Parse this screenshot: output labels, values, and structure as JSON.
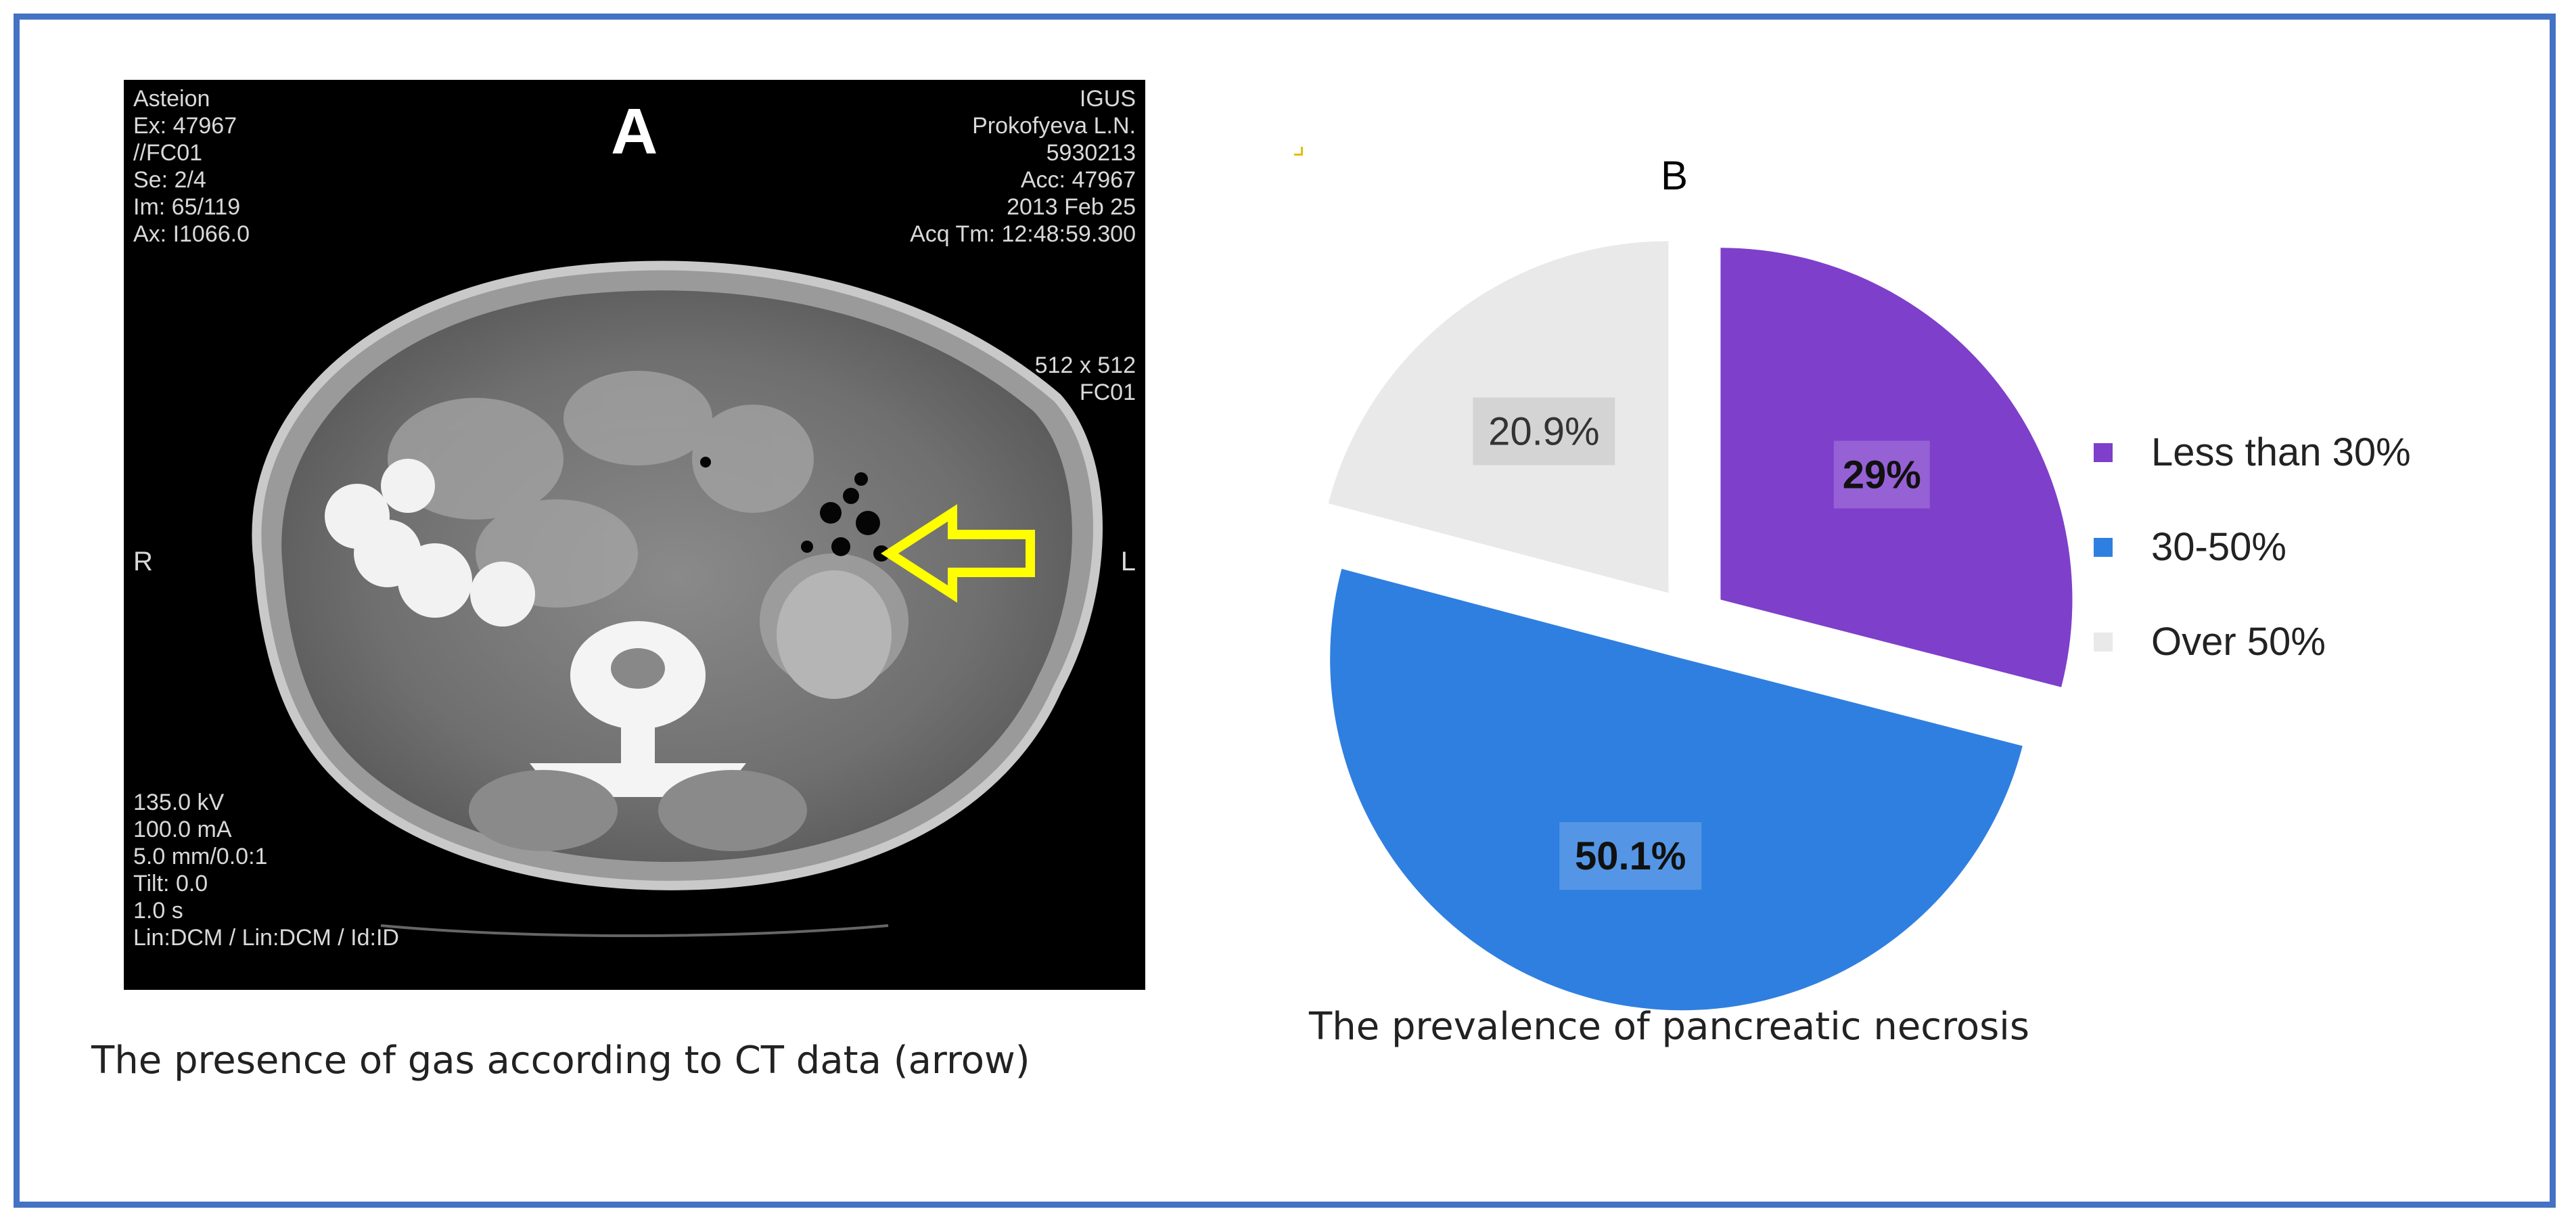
{
  "panel_a": {
    "letter": "A",
    "overlay_left_top": [
      "Asteion",
      "Ex: 47967",
      "//FC01",
      "Se: 2/4",
      "Im: 65/119",
      "Ax: I1066.0"
    ],
    "overlay_right_top": [
      "IGUS",
      "Prokofyeva L.N.",
      "5930213",
      "Acc: 47967",
      "2013 Feb 25",
      "Acq Tm: 12:48:59.300"
    ],
    "overlay_right_mid": [
      "512 x 512",
      "FC01"
    ],
    "overlay_left_bottom": [
      "135.0 kV",
      "100.0 mA",
      "5.0 mm/0.0:1",
      "Tilt: 0.0",
      "1.0 s",
      "Lin:DCM / Lin:DCM / Id:ID"
    ],
    "side_left": "R",
    "side_right": "L",
    "caption": "The presence of gas according to CT data (arrow)",
    "arrow_color": "#FFFF00"
  },
  "chart_data": {
    "type": "pie",
    "title": "B",
    "caption": "The prevalence of pancreatic necrosis",
    "slices": [
      {
        "name": "Less than 30%",
        "value": 29,
        "label": "29%",
        "color": "#7E3FCB",
        "label_bold": true
      },
      {
        "name": "30-50%",
        "value": 50.1,
        "label": "50.1%",
        "color": "#2F7FE0",
        "label_bold": true
      },
      {
        "name": "Over 50%",
        "value": 20.9,
        "label": "20.9%",
        "color": "#E9E9E9",
        "label_bold": false
      }
    ],
    "exploded": true,
    "legend_position": "right"
  }
}
